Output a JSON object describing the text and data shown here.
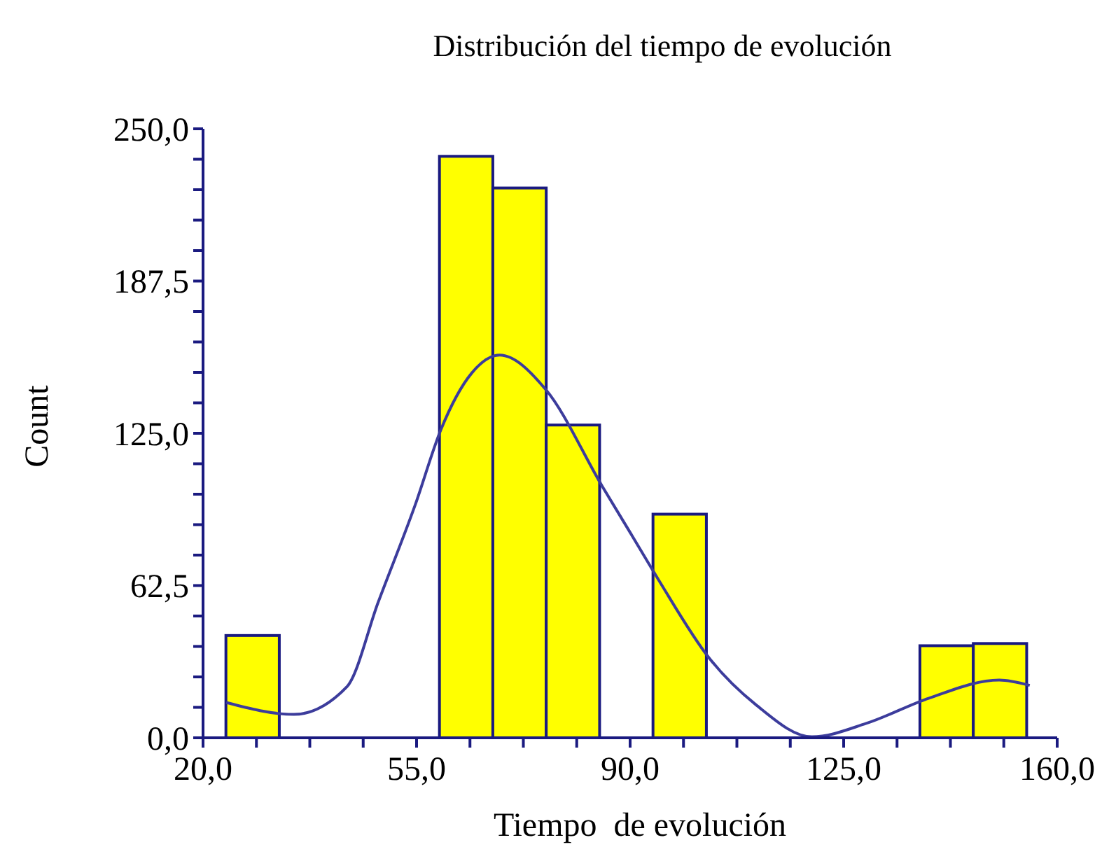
{
  "chart_data": {
    "type": "histogram",
    "title": "Distribución del tiempo de evolución",
    "xlabel": "Tiempo  de evolución",
    "ylabel": "Count",
    "bins": [
      23.75,
      32.5,
      41.25,
      50,
      58.75,
      67.5,
      76.25,
      85,
      93.75,
      102.5,
      111.25,
      120,
      128.75,
      137.5,
      146.25,
      155
    ],
    "series": [
      {
        "color": "#ffff00",
        "values": [
          42,
          0,
          0,
          0,
          238.7,
          225.7,
          128.4,
          0,
          91.8,
          0,
          0,
          0,
          0,
          37.8,
          38.7
        ]
      },
      {
        "type": "line",
        "color": "#3c3c9c",
        "x": [
          23.8,
          34.9,
          43.6,
          48.7,
          54.8,
          59,
          64,
          68.6,
          76.2,
          85.4,
          90,
          94.6,
          103,
          110.7,
          119.8,
          128.7,
          139,
          150.5,
          155.5
        ],
        "values": [
          14.5,
          9.6,
          21,
          55.6,
          95.8,
          126.6,
          149.6,
          157.1,
          142.9,
          103.4,
          84.3,
          65.1,
          32.6,
          13.4,
          0.4,
          5.9,
          16.3,
          23.7,
          21.5
        ]
      }
    ],
    "xlim": [
      20,
      160
    ],
    "ylim": [
      0,
      250
    ],
    "xticks": [
      {
        "value": 20,
        "label": "20,0"
      },
      {
        "value": 28.75,
        "label": null
      },
      {
        "value": 37.5,
        "label": null
      },
      {
        "value": 46.25,
        "label": null
      },
      {
        "value": 55,
        "label": "55,0"
      },
      {
        "value": 63.75,
        "label": null
      },
      {
        "value": 72.5,
        "label": null
      },
      {
        "value": 81.25,
        "label": null
      },
      {
        "value": 90,
        "label": "90,0"
      },
      {
        "value": 98.75,
        "label": null
      },
      {
        "value": 107.5,
        "label": null
      },
      {
        "value": 116.25,
        "label": null
      },
      {
        "value": 125,
        "label": "125,0"
      },
      {
        "value": 133.75,
        "label": null
      },
      {
        "value": 142.5,
        "label": null
      },
      {
        "value": 151.25,
        "label": null
      },
      {
        "value": 160,
        "label": "160,0"
      }
    ],
    "yticks": [
      {
        "value": 0,
        "label": "0,0"
      },
      {
        "value": 12.5,
        "label": null
      },
      {
        "value": 25,
        "label": null
      },
      {
        "value": 37.5,
        "label": null
      },
      {
        "value": 50,
        "label": null
      },
      {
        "value": 62.5,
        "label": "62,5"
      },
      {
        "value": 75,
        "label": null
      },
      {
        "value": 87.5,
        "label": null
      },
      {
        "value": 100,
        "label": null
      },
      {
        "value": 112.5,
        "label": null
      },
      {
        "value": 125,
        "label": "125,0"
      },
      {
        "value": 137.5,
        "label": null
      },
      {
        "value": 150,
        "label": null
      },
      {
        "value": 162.5,
        "label": null
      },
      {
        "value": 175,
        "label": null
      },
      {
        "value": 187.5,
        "label": "187,5"
      },
      {
        "value": 200,
        "label": null
      },
      {
        "value": 212.5,
        "label": null
      },
      {
        "value": 225,
        "label": null
      },
      {
        "value": 237.5,
        "label": null
      },
      {
        "value": 250,
        "label": "250,0"
      }
    ],
    "grid": false
  }
}
